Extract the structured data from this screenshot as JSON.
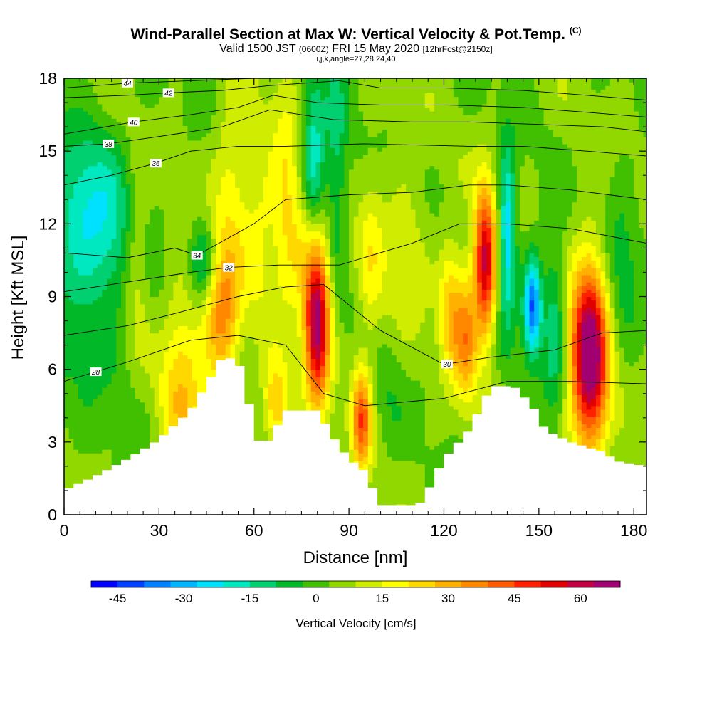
{
  "header": {
    "title": "Wind-Parallel Section at Max W: Vertical Velocity & Pot.Temp.",
    "copyright": "(C)",
    "valid_prefix": "Valid 1500 JST",
    "valid_utc": "(0600Z)",
    "valid_date": "FRI 15 May 2020",
    "forecast": "[12hrFcst@2150z]",
    "indices": "i,j,k,angle=27,28,24,40"
  },
  "chart_data": {
    "type": "heatmap",
    "title": "Wind-Parallel Section at Max W: Vertical Velocity & Pot.Temp.",
    "xlabel": "Distance [nm]",
    "ylabel": "Height [Kft MSL]",
    "xlim": [
      0,
      184
    ],
    "ylim": [
      0,
      18
    ],
    "x_ticks": [
      0,
      30,
      60,
      90,
      120,
      150,
      180
    ],
    "y_ticks": [
      0,
      3,
      6,
      9,
      12,
      15,
      18
    ],
    "colorbar": {
      "label": "Vertical Velocity [cm/s]",
      "min": -51,
      "max": 69,
      "step": 6,
      "tick_values": [
        -45,
        -30,
        -15,
        0,
        15,
        30,
        45,
        60
      ],
      "colors": [
        "#0000ff",
        "#0040ff",
        "#0080ff",
        "#00b4ff",
        "#00e0ff",
        "#00e8c0",
        "#00d070",
        "#00b828",
        "#40c000",
        "#90d800",
        "#d0ec00",
        "#ffff00",
        "#ffd800",
        "#ffb000",
        "#ff8800",
        "#ff5c00",
        "#ff2000",
        "#e00000",
        "#c00040",
        "#a00070"
      ]
    },
    "terrain_height_kft": [
      {
        "x": 0,
        "h": 1.0
      },
      {
        "x": 10,
        "h": 1.6
      },
      {
        "x": 20,
        "h": 2.3
      },
      {
        "x": 30,
        "h": 3.1
      },
      {
        "x": 40,
        "h": 4.3
      },
      {
        "x": 48,
        "h": 6.0
      },
      {
        "x": 50,
        "h": 6.5
      },
      {
        "x": 55,
        "h": 6.4
      },
      {
        "x": 59,
        "h": 4.3
      },
      {
        "x": 62,
        "h": 2.8
      },
      {
        "x": 65,
        "h": 3.1
      },
      {
        "x": 70,
        "h": 4.3
      },
      {
        "x": 80,
        "h": 4.3
      },
      {
        "x": 85,
        "h": 3.2
      },
      {
        "x": 90,
        "h": 2.3
      },
      {
        "x": 95,
        "h": 1.8
      },
      {
        "x": 100,
        "h": 0.4
      },
      {
        "x": 112,
        "h": 0.4
      },
      {
        "x": 115,
        "h": 1.0
      },
      {
        "x": 120,
        "h": 2.3
      },
      {
        "x": 128,
        "h": 3.5
      },
      {
        "x": 135,
        "h": 5.3
      },
      {
        "x": 142,
        "h": 5.3
      },
      {
        "x": 148,
        "h": 4.5
      },
      {
        "x": 152,
        "h": 3.5
      },
      {
        "x": 160,
        "h": 3.0
      },
      {
        "x": 170,
        "h": 2.6
      },
      {
        "x": 175,
        "h": 2.2
      },
      {
        "x": 184,
        "h": 2.0
      }
    ],
    "velocity_features": [
      {
        "x": 8,
        "z": 12.4,
        "w": -22,
        "sx": 10,
        "sz": 2.5
      },
      {
        "x": 10,
        "z": 8.5,
        "w": -8,
        "sx": 14,
        "sz": 3.0
      },
      {
        "x": 23,
        "z": 10.5,
        "w": 16,
        "sx": 3,
        "sz": 2.5
      },
      {
        "x": 37,
        "z": 5.5,
        "w": 22,
        "sx": 5,
        "sz": 3.0
      },
      {
        "x": 44,
        "z": 10.5,
        "w": -20,
        "sx": 3,
        "sz": 1.2
      },
      {
        "x": 50,
        "z": 8.2,
        "w": 32,
        "sx": 4,
        "sz": 2.2
      },
      {
        "x": 53,
        "z": 14.0,
        "w": 14,
        "sx": 4,
        "sz": 2.5
      },
      {
        "x": 62,
        "z": 12.0,
        "w": 12,
        "sx": 4,
        "sz": 3.0
      },
      {
        "x": 67,
        "z": 4.5,
        "w": 25,
        "sx": 3,
        "sz": 1.3
      },
      {
        "x": 70,
        "z": 14.0,
        "w": 12,
        "sx": 3,
        "sz": 3.0
      },
      {
        "x": 74,
        "z": 11.0,
        "w": 15,
        "sx": 5,
        "sz": 2.0
      },
      {
        "x": 79,
        "z": 14.5,
        "w": -26,
        "sx": 2.5,
        "sz": 2.5
      },
      {
        "x": 80,
        "z": 8.0,
        "w": 64,
        "sx": 2.8,
        "sz": 2.3
      },
      {
        "x": 86,
        "z": 14.5,
        "w": -16,
        "sx": 2.5,
        "sz": 3.0
      },
      {
        "x": 94,
        "z": 4.0,
        "w": 38,
        "sx": 2.2,
        "sz": 1.5
      },
      {
        "x": 97,
        "z": 10.0,
        "w": 12,
        "sx": 3,
        "sz": 3.0
      },
      {
        "x": 102,
        "z": 5.0,
        "w": -5,
        "sx": 4,
        "sz": 2.0
      },
      {
        "x": 108,
        "z": 11.0,
        "w": 10,
        "sx": 5,
        "sz": 2.5
      },
      {
        "x": 122,
        "z": 8.5,
        "w": 22,
        "sx": 2.5,
        "sz": 2.0
      },
      {
        "x": 127,
        "z": 7.5,
        "w": 28,
        "sx": 2.5,
        "sz": 2.0
      },
      {
        "x": 133,
        "z": 10.4,
        "w": 55,
        "sx": 2.5,
        "sz": 2.2
      },
      {
        "x": 140,
        "z": 11.5,
        "w": -32,
        "sx": 2.0,
        "sz": 2.5
      },
      {
        "x": 148,
        "z": 8.6,
        "w": -44,
        "sx": 2.0,
        "sz": 1.4
      },
      {
        "x": 155,
        "z": 8.0,
        "w": -18,
        "sx": 2.5,
        "sz": 2.5
      },
      {
        "x": 166,
        "z": 6.5,
        "w": 68,
        "sx": 4.2,
        "sz": 2.8
      },
      {
        "x": 176,
        "z": 10.5,
        "w": -10,
        "sx": 4,
        "sz": 2.5
      }
    ],
    "theta_contours": [
      {
        "label": "28",
        "label_x": 10,
        "points": [
          [
            0,
            5.5
          ],
          [
            20,
            6.3
          ],
          [
            40,
            7.2
          ],
          [
            55,
            7.4
          ],
          [
            70,
            7.0
          ],
          [
            82,
            5.0
          ],
          [
            95,
            4.5
          ],
          [
            120,
            4.8
          ],
          [
            140,
            5.5
          ],
          [
            160,
            5.5
          ],
          [
            184,
            5.4
          ]
        ]
      },
      {
        "label": "30",
        "label_x": 121,
        "points": [
          [
            0,
            7.4
          ],
          [
            20,
            7.8
          ],
          [
            35,
            8.3
          ],
          [
            55,
            9.0
          ],
          [
            70,
            9.4
          ],
          [
            82,
            9.5
          ],
          [
            100,
            7.6
          ],
          [
            120,
            6.2
          ],
          [
            135,
            6.5
          ],
          [
            155,
            6.8
          ],
          [
            170,
            7.5
          ],
          [
            184,
            7.6
          ]
        ]
      },
      {
        "label": "32",
        "label_x": 52,
        "points": [
          [
            0,
            9.2
          ],
          [
            20,
            9.6
          ],
          [
            40,
            10.0
          ],
          [
            52,
            10.2
          ],
          [
            68,
            10.3
          ],
          [
            87,
            10.3
          ],
          [
            110,
            11.2
          ],
          [
            125,
            12.0
          ],
          [
            140,
            12.0
          ],
          [
            160,
            11.8
          ],
          [
            184,
            11.2
          ]
        ]
      },
      {
        "label": "34",
        "label_x": 42,
        "points": [
          [
            0,
            10.8
          ],
          [
            20,
            10.6
          ],
          [
            35,
            11.0
          ],
          [
            42,
            10.7
          ],
          [
            60,
            12.0
          ],
          [
            70,
            13.0
          ],
          [
            90,
            13.2
          ],
          [
            110,
            13.3
          ],
          [
            128,
            13.6
          ],
          [
            140,
            13.6
          ],
          [
            160,
            13.4
          ],
          [
            184,
            13.0
          ]
        ]
      },
      {
        "label": "36",
        "label_x": 29,
        "points": [
          [
            0,
            13.6
          ],
          [
            15,
            14.0
          ],
          [
            29,
            14.5
          ],
          [
            40,
            15.0
          ],
          [
            55,
            15.2
          ],
          [
            70,
            15.2
          ],
          [
            95,
            15.3
          ],
          [
            128,
            15.2
          ],
          [
            145,
            15.2
          ],
          [
            165,
            15.0
          ],
          [
            184,
            14.8
          ]
        ]
      },
      {
        "label": "38",
        "label_x": 14,
        "points": [
          [
            0,
            15.2
          ],
          [
            14,
            15.3
          ],
          [
            30,
            15.6
          ],
          [
            50,
            16.0
          ],
          [
            65,
            16.7
          ],
          [
            85,
            16.3
          ],
          [
            110,
            16.2
          ],
          [
            128,
            16.2
          ],
          [
            150,
            16.1
          ],
          [
            170,
            16.0
          ],
          [
            184,
            15.8
          ]
        ]
      },
      {
        "label": "40",
        "label_x": 22,
        "points": [
          [
            0,
            15.7
          ],
          [
            22,
            16.2
          ],
          [
            40,
            16.5
          ],
          [
            55,
            16.8
          ],
          [
            66,
            17.3
          ],
          [
            80,
            17.0
          ],
          [
            100,
            16.9
          ],
          [
            121,
            16.9
          ],
          [
            145,
            16.8
          ],
          [
            165,
            16.6
          ],
          [
            184,
            16.4
          ]
        ]
      },
      {
        "label": "42",
        "label_x": 33,
        "points": [
          [
            0,
            17.2
          ],
          [
            20,
            17.3
          ],
          [
            33,
            17.4
          ],
          [
            50,
            17.5
          ],
          [
            65,
            17.7
          ],
          [
            87,
            17.9
          ],
          [
            100,
            17.6
          ],
          [
            120,
            17.6
          ],
          [
            145,
            17.5
          ],
          [
            165,
            17.3
          ],
          [
            184,
            17.1
          ]
        ]
      },
      {
        "label": "44",
        "label_x": 20,
        "points": [
          [
            0,
            17.6
          ],
          [
            20,
            17.8
          ],
          [
            40,
            17.9
          ],
          [
            60,
            18.0
          ]
        ]
      }
    ]
  }
}
